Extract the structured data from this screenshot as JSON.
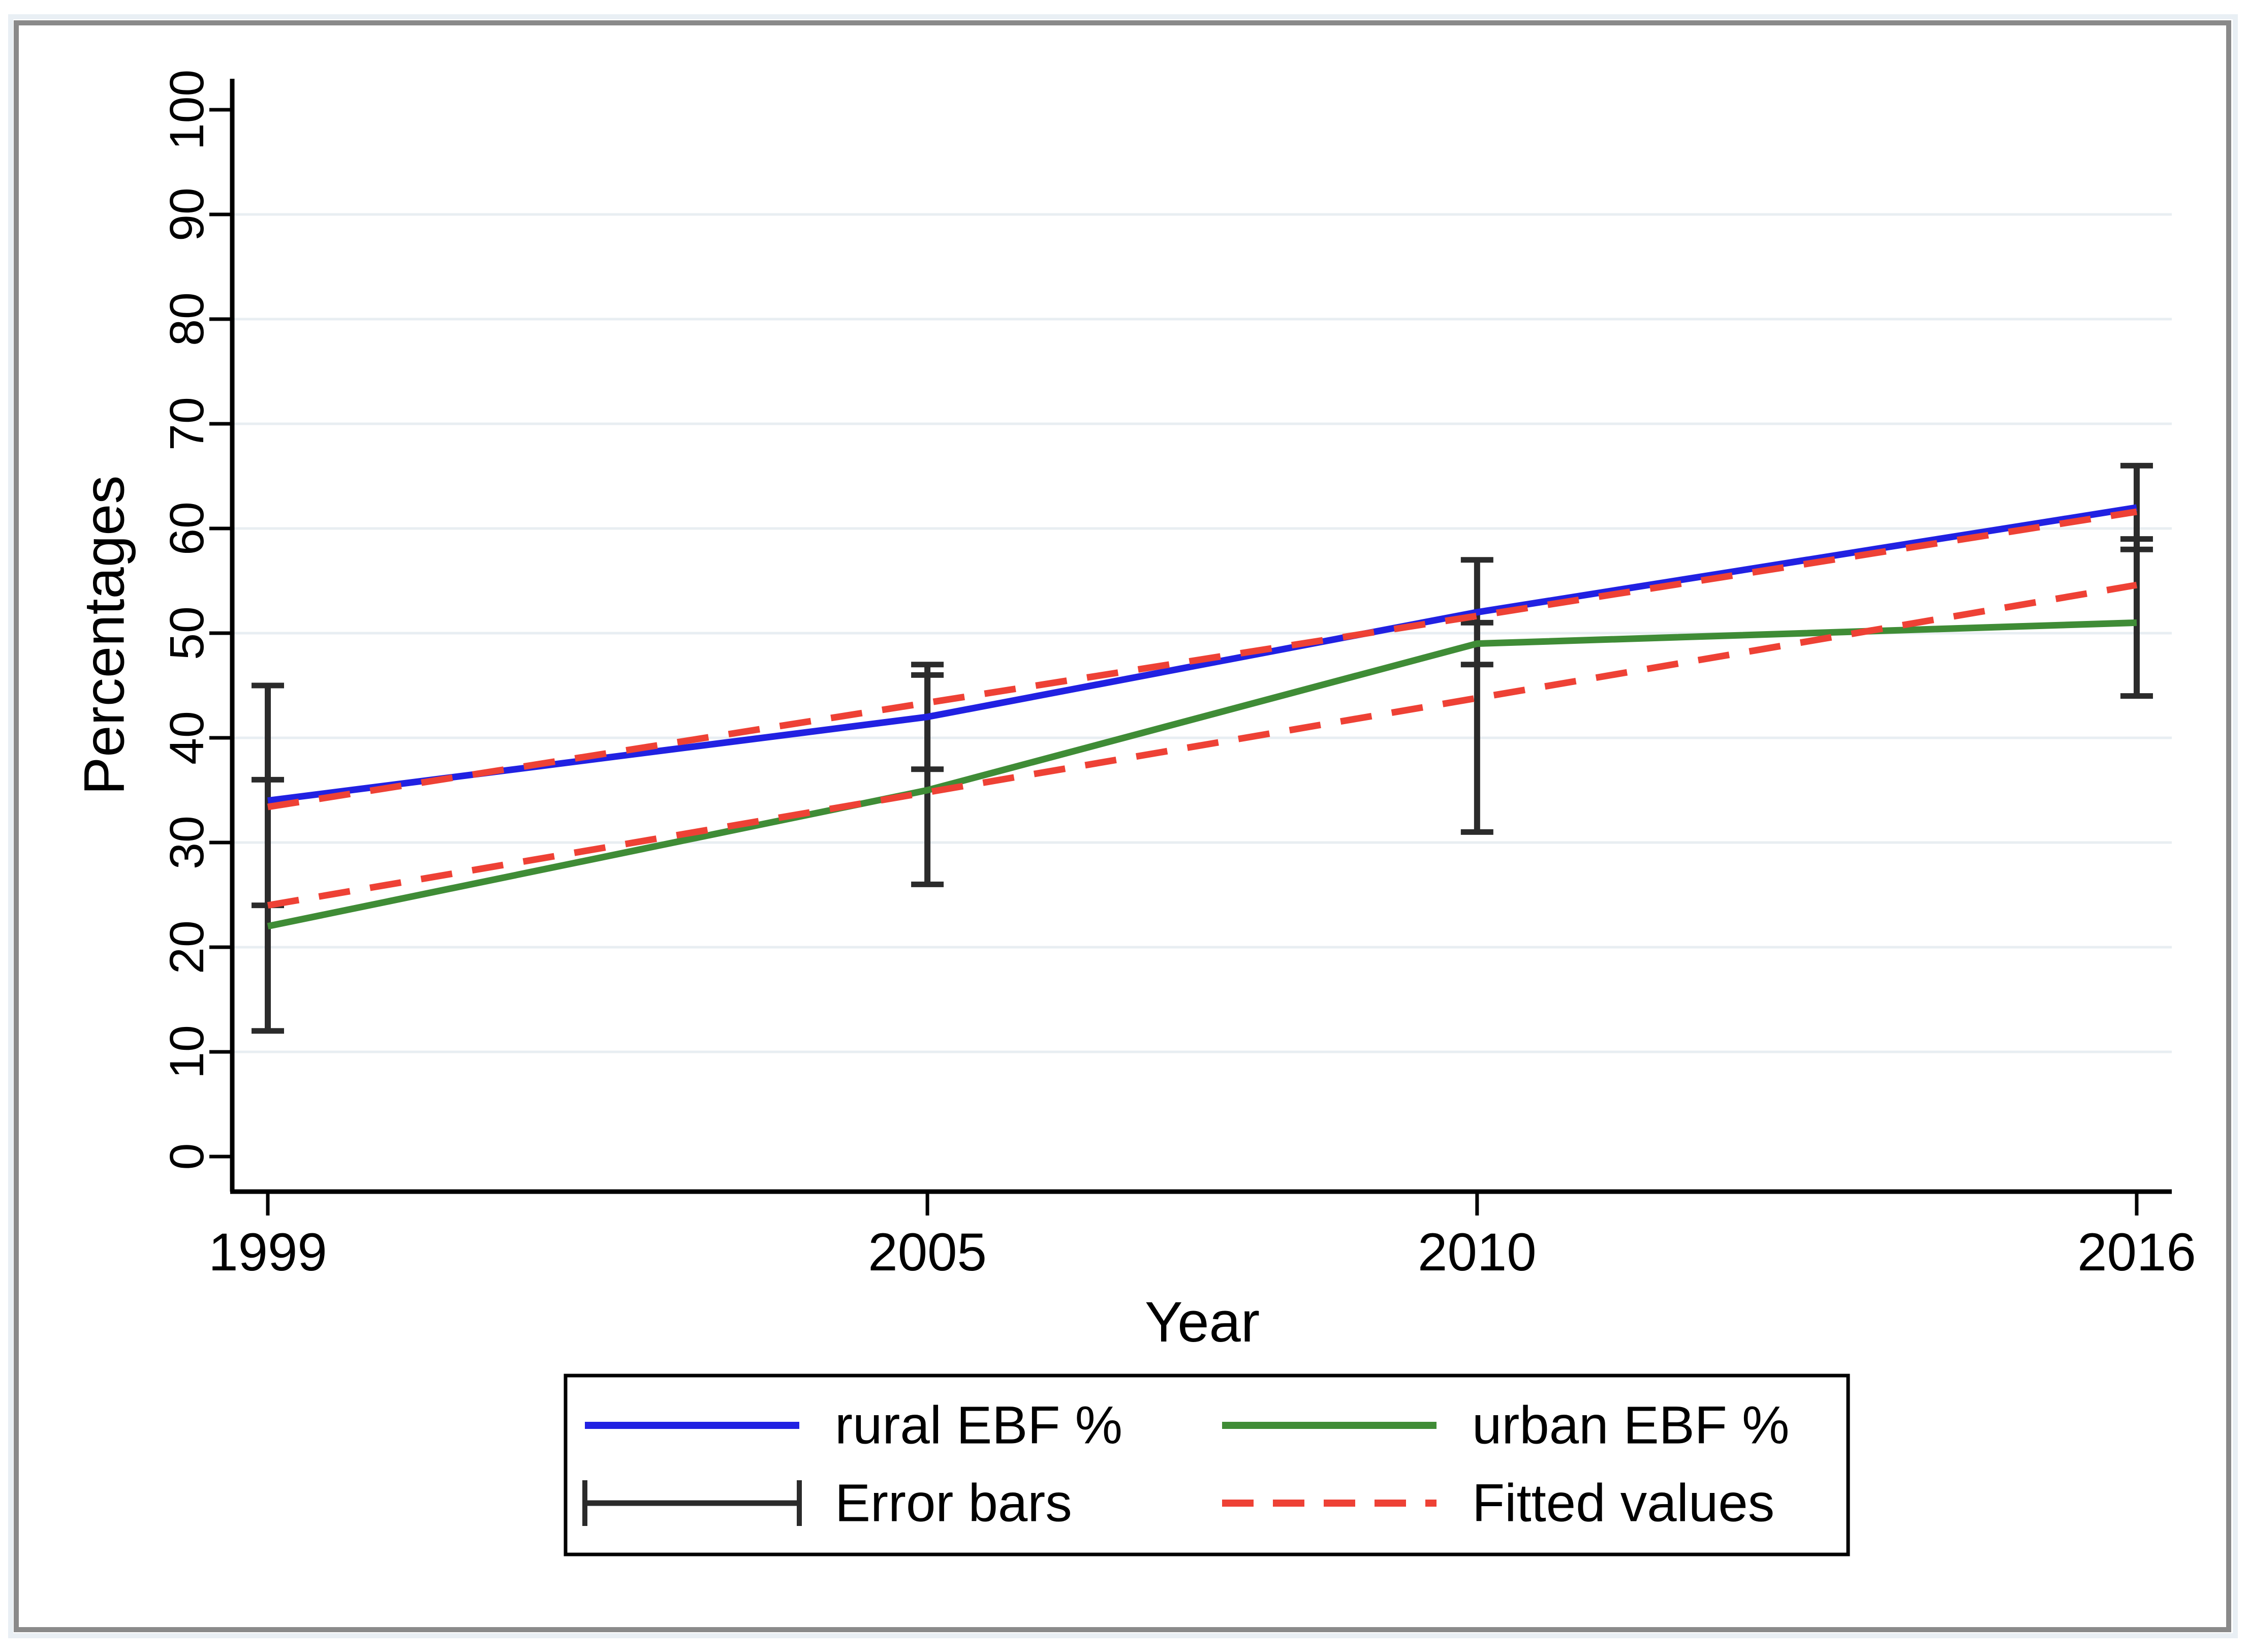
{
  "figure": {
    "background": "#ffffff",
    "outer_halo_color": "#e9eff4",
    "border_color": "#8a8a8a",
    "axis_color": "#000000",
    "grid_color": "#e8eef2",
    "text_color": "#000000"
  },
  "chart_data": {
    "type": "line",
    "title": "",
    "xlabel": "Year",
    "ylabel": "Percentages",
    "xticks": [
      1999,
      2005,
      2010,
      2016
    ],
    "yticks": [
      0,
      10,
      20,
      30,
      40,
      50,
      60,
      70,
      80,
      90,
      100
    ],
    "grid_y": [
      10,
      20,
      30,
      40,
      50,
      60,
      70,
      80,
      90
    ],
    "xlim": [
      1998.7,
      2016.3
    ],
    "ylim": [
      0,
      100
    ],
    "legend_position": "bottom",
    "series": [
      {
        "name": "rural EBF %",
        "style": "solid",
        "color": "#2121e2",
        "x": [
          1999,
          2005,
          2010,
          2016
        ],
        "values": [
          34,
          42,
          52,
          62
        ]
      },
      {
        "name": "urban EBF %",
        "style": "solid",
        "color": "#3f8c36",
        "x": [
          1999,
          2005,
          2010,
          2016
        ],
        "values": [
          22,
          35,
          49,
          51
        ]
      },
      {
        "name": "Fitted values (rural)",
        "style": "dashed",
        "color": "#ee4135",
        "x": [
          1999,
          2016
        ],
        "values": [
          33.4,
          61.6
        ]
      },
      {
        "name": "Fitted values (urban)",
        "style": "dashed",
        "color": "#ee4135",
        "x": [
          1999,
          2016
        ],
        "values": [
          24,
          54.6
        ]
      }
    ],
    "error_bars": {
      "color": "#2b2b2b",
      "groups": [
        {
          "x": 1999,
          "bars": [
            [
              24,
              45
            ],
            [
              12,
              36
            ]
          ]
        },
        {
          "x": 2005,
          "bars": [
            [
              37,
              47
            ],
            [
              26,
              46
            ]
          ]
        },
        {
          "x": 2010,
          "bars": [
            [
              47,
              57
            ],
            [
              31,
              51
            ]
          ]
        },
        {
          "x": 2016,
          "bars": [
            [
              58,
              66
            ],
            [
              44,
              59
            ]
          ]
        }
      ]
    },
    "legend": {
      "entries": [
        {
          "label": "rural EBF %",
          "type": "line",
          "color": "#2121e2"
        },
        {
          "label": "urban EBF %",
          "type": "line",
          "color": "#3f8c36"
        },
        {
          "label": "Error bars",
          "type": "errorbar",
          "color": "#2b2b2b"
        },
        {
          "label": "Fitted values",
          "type": "dashed",
          "color": "#ee4135"
        }
      ]
    }
  }
}
